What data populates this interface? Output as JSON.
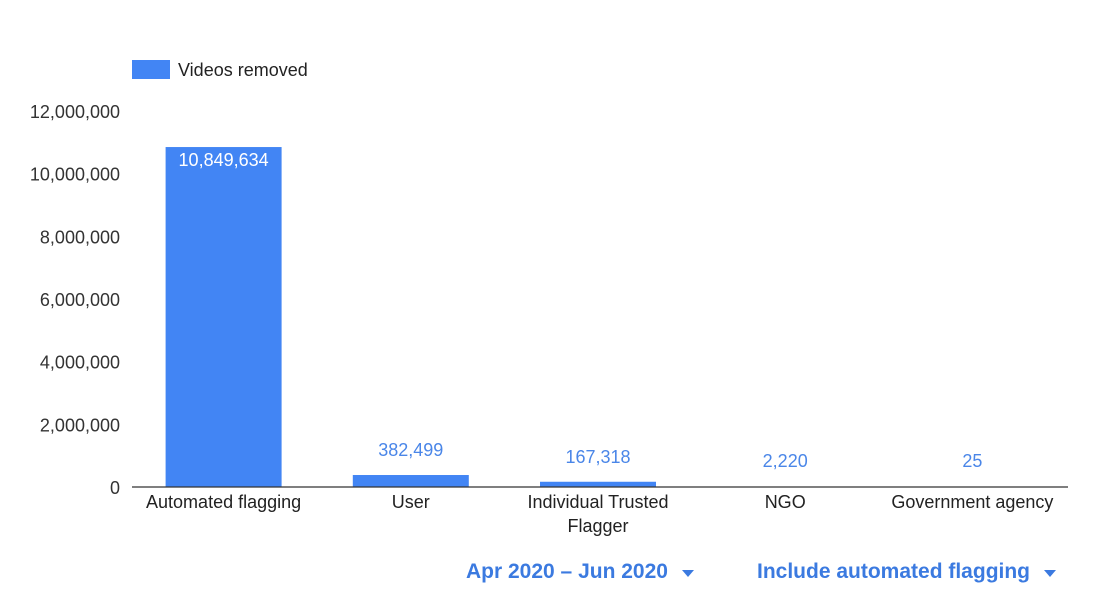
{
  "chart_data": {
    "type": "bar",
    "legend": {
      "label": "Videos removed",
      "position": "top-left"
    },
    "color": "#4285f4",
    "categories": [
      "Automated flagging",
      "User",
      "Individual Trusted Flagger",
      "NGO",
      "Government agency"
    ],
    "category_lines": [
      [
        "Automated flagging"
      ],
      [
        "User"
      ],
      [
        "Individual Trusted",
        "Flagger"
      ],
      [
        "NGO"
      ],
      [
        "Government agency"
      ]
    ],
    "series": [
      {
        "name": "Videos removed",
        "values": [
          10849634,
          382499,
          167318,
          2220,
          25
        ]
      }
    ],
    "data_labels": [
      "10,849,634",
      "382,499",
      "167,318",
      "2,220",
      "25"
    ],
    "ylim": [
      0,
      12000000
    ],
    "yticks": [
      0,
      2000000,
      4000000,
      6000000,
      8000000,
      10000000,
      12000000
    ],
    "ytick_labels": [
      "0",
      "2,000,000",
      "4,000,000",
      "6,000,000",
      "8,000,000",
      "10,000,000",
      "12,000,000"
    ],
    "grid": false
  },
  "controls": {
    "date_range": "Apr 2020 – Jun 2020",
    "flagging_filter": "Include automated flagging"
  }
}
